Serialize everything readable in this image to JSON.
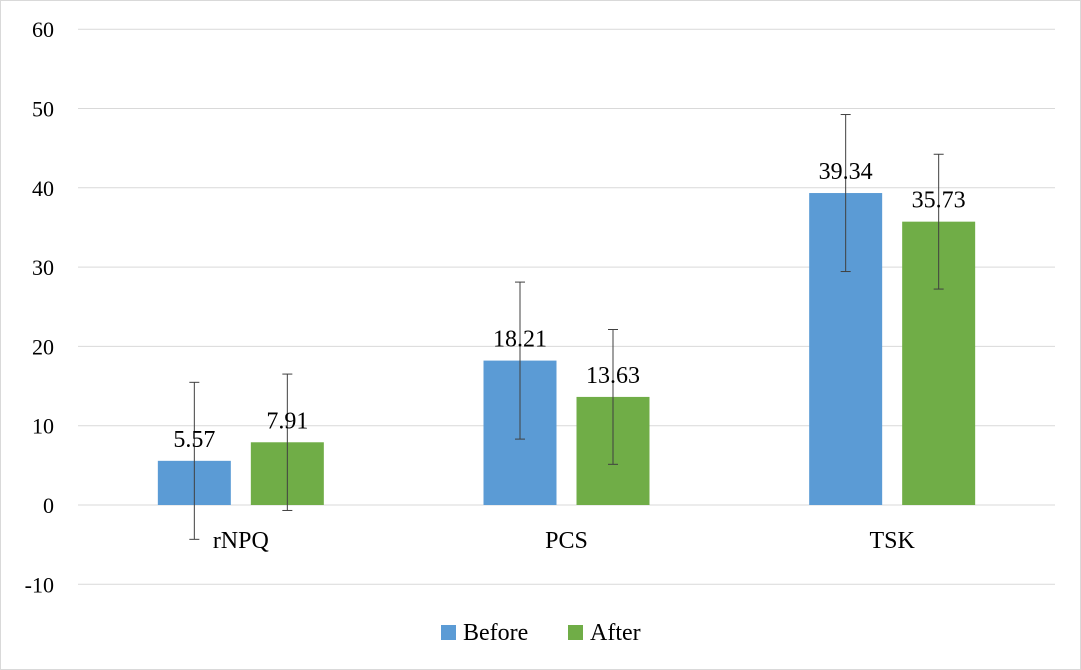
{
  "chart_data": {
    "type": "bar",
    "categories": [
      "rNPQ",
      "PCS",
      "TSK"
    ],
    "series": [
      {
        "name": "Before",
        "color": "#5b9bd5",
        "values": [
          5.57,
          18.21,
          39.34
        ],
        "error": [
          9.9,
          9.9,
          9.9
        ]
      },
      {
        "name": "After",
        "color": "#70ad47",
        "values": [
          7.91,
          13.63,
          35.73
        ],
        "error": [
          8.6,
          8.5,
          8.5
        ]
      }
    ],
    "data_labels": [
      [
        "5.57",
        "18.21",
        "39.34"
      ],
      [
        "7.91",
        "13.63",
        "35.73"
      ]
    ],
    "yticks": [
      "-10",
      "0",
      "10",
      "20",
      "30",
      "40",
      "50",
      "60"
    ],
    "ylim": [
      -10,
      60
    ],
    "title": "",
    "xlabel": "",
    "ylabel": "",
    "grid": true,
    "legend": "bottom-center",
    "gridline_color": "#d9d9d9",
    "errorbar_color": "#404040"
  }
}
